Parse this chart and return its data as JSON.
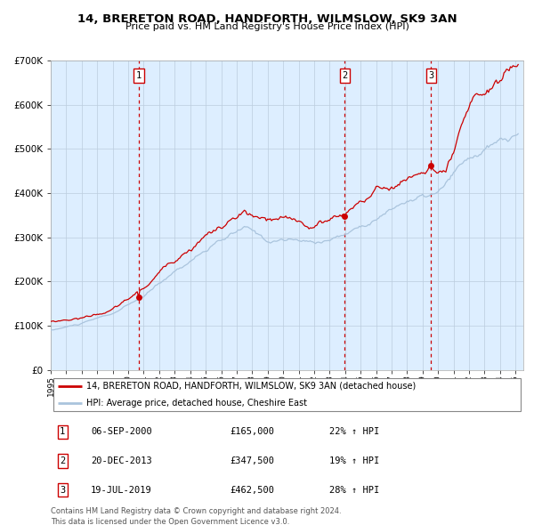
{
  "title": "14, BRERETON ROAD, HANDFORTH, WILMSLOW, SK9 3AN",
  "subtitle": "Price paid vs. HM Land Registry's House Price Index (HPI)",
  "legend_line1": "14, BRERETON ROAD, HANDFORTH, WILMSLOW, SK9 3AN (detached house)",
  "legend_line2": "HPI: Average price, detached house, Cheshire East",
  "footer1": "Contains HM Land Registry data © Crown copyright and database right 2024.",
  "footer2": "This data is licensed under the Open Government Licence v3.0.",
  "transactions": [
    {
      "num": 1,
      "date": "06-SEP-2000",
      "price": 165000,
      "pct": "22%",
      "dir": "↑"
    },
    {
      "num": 2,
      "date": "20-DEC-2013",
      "price": 347500,
      "pct": "19%",
      "dir": "↑"
    },
    {
      "num": 3,
      "date": "19-JUL-2019",
      "price": 462500,
      "pct": "28%",
      "dir": "↑"
    }
  ],
  "transaction_dates_decimal": [
    2000.68,
    2013.97,
    2019.54
  ],
  "transaction_prices": [
    165000,
    347500,
    462500
  ],
  "hpi_color": "#aac4dd",
  "price_color": "#cc0000",
  "dot_color": "#cc0000",
  "vline_color": "#cc0000",
  "background_color": "#ddeeff",
  "ylim": [
    0,
    700000
  ],
  "xlim_start": 1995.0,
  "xlim_end": 2025.5,
  "grid_color": "#bbccdd",
  "title_fontsize": 10,
  "subtitle_fontsize": 8,
  "tick_fontsize": 7
}
